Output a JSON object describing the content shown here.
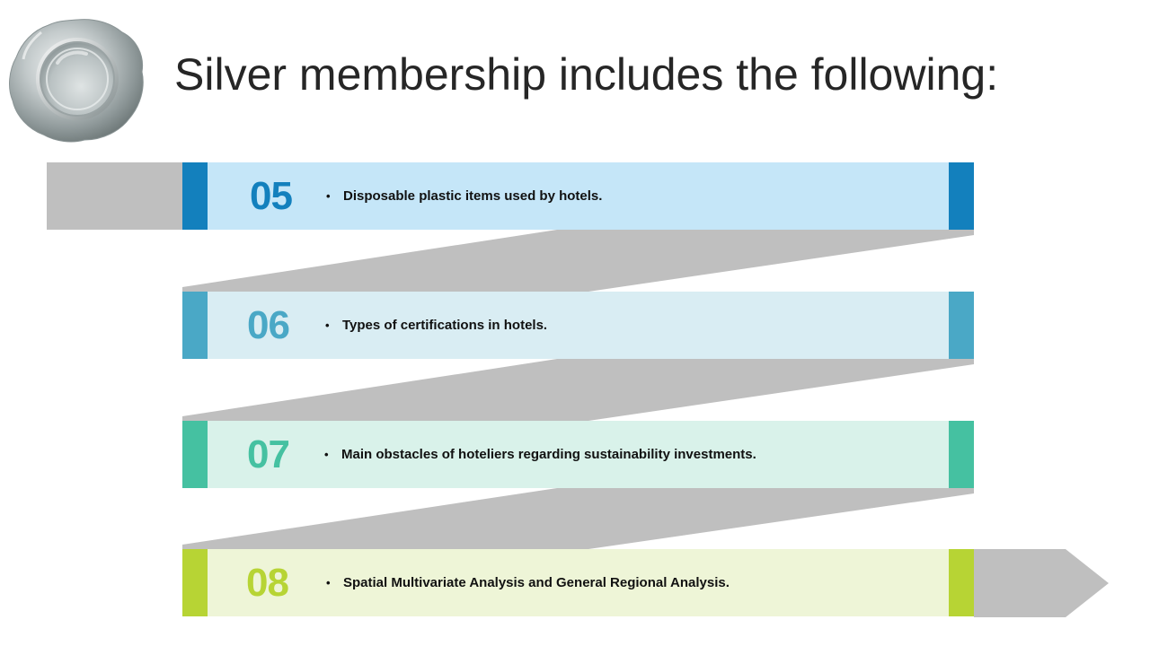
{
  "title": "Silver membership includes the following:",
  "icons": {
    "seal": "silver-wax-seal-icon"
  },
  "colors": {
    "connector": "#bfbfbf",
    "title": "#262626",
    "item_text": "#111111"
  },
  "items": [
    {
      "number": "05",
      "text": "Disposable plastic items used by hotels.",
      "accent": "#1380bd",
      "fill": "#c5e6f8"
    },
    {
      "number": "06",
      "text": "Types of certifications in hotels.",
      "accent": "#4aa8c6",
      "fill": "#d9edf3"
    },
    {
      "number": "07",
      "text": "Main obstacles of hoteliers regarding sustainability investments.",
      "accent": "#45c1a1",
      "fill": "#d9f2ea"
    },
    {
      "number": "08",
      "text": "Spatial Multivariate Analysis and General Regional Analysis.",
      "accent": "#b7d434",
      "fill": "#eef5d7"
    }
  ]
}
